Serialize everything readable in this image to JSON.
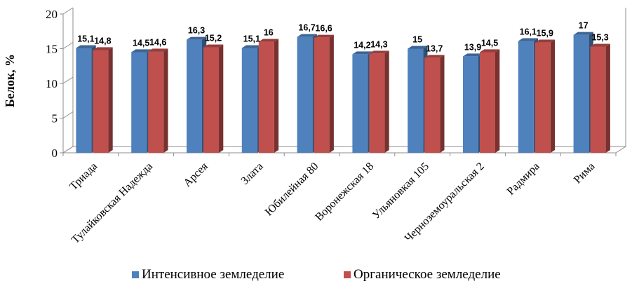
{
  "chart_data": {
    "type": "bar",
    "title": "",
    "xlabel": "",
    "ylabel": "Белок, %",
    "ylim": [
      0,
      20
    ],
    "yticks": [
      0,
      5,
      10,
      15,
      20
    ],
    "categories": [
      "Триада",
      "Тулайковская Надежда",
      "Арсея",
      "Злата",
      "Юбилейная 80",
      "Воронежская 18",
      "Ульяновкая 105",
      "Черноземоуральская 2",
      "Радмира",
      "Рима"
    ],
    "series": [
      {
        "name": "Интенсивное земледелие",
        "color": "#4F81BD",
        "values": [
          15.1,
          14.5,
          16.3,
          15.1,
          16.7,
          14.2,
          15,
          13.9,
          16.1,
          17
        ],
        "labels": [
          "15,1",
          "14,5",
          "16,3",
          "15,1",
          "16,7",
          "14,2",
          "15",
          "13,9",
          "16,1",
          "17"
        ]
      },
      {
        "name": "Органическое земледелие",
        "color": "#C0504D",
        "values": [
          14.8,
          14.6,
          15.2,
          16,
          16.6,
          14.3,
          13.7,
          14.5,
          15.9,
          15.3
        ],
        "labels": [
          "14,8",
          "14,6",
          "15,2",
          "16",
          "16,6",
          "14,3",
          "13,7",
          "14,5",
          "15,9",
          "15,3"
        ]
      }
    ],
    "grid": false,
    "style": "3d-clustered-column",
    "legend_position": "bottom"
  }
}
